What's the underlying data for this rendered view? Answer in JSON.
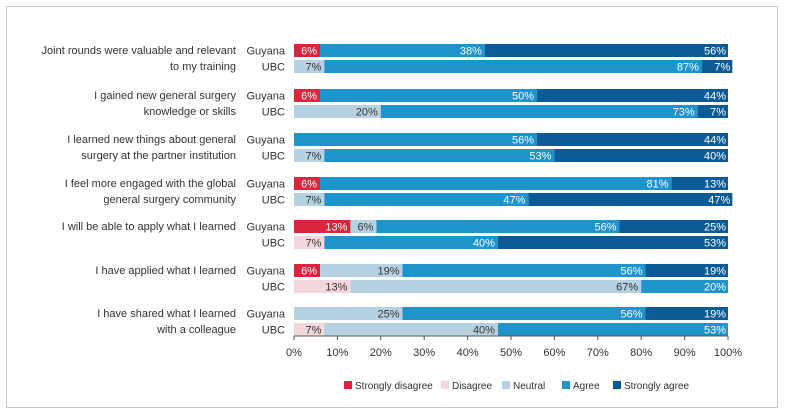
{
  "chart_data": {
    "type": "bar",
    "orientation": "horizontal",
    "stacked": true,
    "percent": true,
    "xlim": [
      0,
      100
    ],
    "xticks": [
      "0%",
      "10%",
      "20%",
      "30%",
      "40%",
      "50%",
      "60%",
      "70%",
      "80%",
      "90%",
      "100%"
    ],
    "legend_position": "bottom",
    "series": [
      {
        "name": "Strongly disagree",
        "color": "#d7263d"
      },
      {
        "name": "Disagree",
        "color": "#f4d6dd"
      },
      {
        "name": "Neutral",
        "color": "#b6d2e2"
      },
      {
        "name": "Agree",
        "color": "#1f93cc"
      },
      {
        "name": "Strongly agree",
        "color": "#0c5a96"
      }
    ],
    "groups": [
      {
        "question": [
          "Joint rounds were valuable and relevant",
          "to my training"
        ],
        "bars": [
          {
            "label": "Guyana",
            "values": [
              6,
              0,
              0,
              38,
              56
            ],
            "labels": [
              "6%",
              "",
              "",
              "38%",
              "56%"
            ]
          },
          {
            "label": "UBC",
            "values": [
              0,
              0,
              7,
              87,
              7
            ],
            "labels": [
              "",
              "",
              "7%",
              "87%",
              "7%"
            ]
          }
        ]
      },
      {
        "question": [
          "I gained new general surgery",
          "knowledge or skills"
        ],
        "bars": [
          {
            "label": "Guyana",
            "values": [
              6,
              0,
              0,
              50,
              44
            ],
            "labels": [
              "6%",
              "",
              "",
              "50%",
              "44%"
            ]
          },
          {
            "label": "UBC",
            "values": [
              0,
              0,
              20,
              73,
              7
            ],
            "labels": [
              "",
              "",
              "20%",
              "73%",
              "7%"
            ]
          }
        ]
      },
      {
        "question": [
          "I learned new things about general",
          "surgery at the partner institution"
        ],
        "bars": [
          {
            "label": "Guyana",
            "values": [
              0,
              0,
              0,
              56,
              44
            ],
            "labels": [
              "",
              "",
              "",
              "56%",
              "44%"
            ]
          },
          {
            "label": "UBC",
            "values": [
              0,
              0,
              7,
              53,
              40
            ],
            "labels": [
              "",
              "",
              "7%",
              "53%",
              "40%"
            ]
          }
        ]
      },
      {
        "question": [
          "I feel more engaged with the global",
          "general surgery community"
        ],
        "bars": [
          {
            "label": "Guyana",
            "values": [
              6,
              0,
              0,
              81,
              13
            ],
            "labels": [
              "6%",
              "",
              "",
              "81%",
              "13%"
            ]
          },
          {
            "label": "UBC",
            "values": [
              0,
              0,
              7,
              47,
              47
            ],
            "labels": [
              "",
              "",
              "7%",
              "47%",
              "47%"
            ]
          }
        ]
      },
      {
        "question": [
          "I will be able to apply what I learned"
        ],
        "bars": [
          {
            "label": "Guyana",
            "values": [
              13,
              0,
              6,
              56,
              25
            ],
            "labels": [
              "13%",
              "",
              "6%",
              "56%",
              "25%"
            ]
          },
          {
            "label": "UBC",
            "values": [
              0,
              7,
              0,
              40,
              53
            ],
            "labels": [
              "",
              "7%",
              "",
              "40%",
              "53%"
            ]
          }
        ]
      },
      {
        "question": [
          "I have applied what I learned"
        ],
        "bars": [
          {
            "label": "Guyana",
            "values": [
              6,
              0,
              19,
              56,
              19
            ],
            "labels": [
              "6%",
              "",
              "19%",
              "56%",
              "19%"
            ]
          },
          {
            "label": "UBC",
            "values": [
              0,
              13,
              67,
              20,
              0
            ],
            "labels": [
              "",
              "13%",
              "67%",
              "20%",
              ""
            ]
          }
        ]
      },
      {
        "question": [
          "I have shared what I learned",
          "with a colleague"
        ],
        "bars": [
          {
            "label": "Guyana",
            "values": [
              0,
              0,
              25,
              56,
              19
            ],
            "labels": [
              "",
              "",
              "25%",
              "56%",
              "19%"
            ]
          },
          {
            "label": "UBC",
            "values": [
              0,
              7,
              40,
              53,
              0
            ],
            "labels": [
              "",
              "7%",
              "40%",
              "53%",
              ""
            ]
          }
        ]
      }
    ]
  }
}
